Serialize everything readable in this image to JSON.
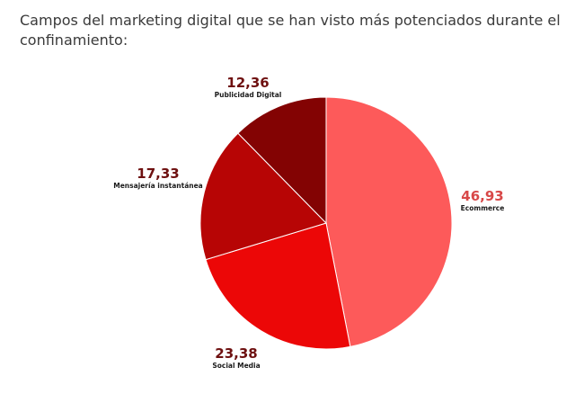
{
  "chart_data": {
    "type": "pie",
    "title": "Campos del marketing digital que se han visto más potenciados durante el confinamiento:",
    "slices": [
      {
        "label": "Ecommerce",
        "value": 46.93,
        "display": "46,93",
        "color": "#fd5a5a",
        "value_color": "#d84848"
      },
      {
        "label": "Social Media",
        "value": 23.38,
        "display": "23,38",
        "color": "#ec0707",
        "value_color": "#6e1010"
      },
      {
        "label": "Mensajería instantánea",
        "value": 17.33,
        "display": "17,33",
        "color": "#b70505",
        "value_color": "#6e1010"
      },
      {
        "label": "Publicidad Digital",
        "value": 12.36,
        "display": "12,36",
        "color": "#830303",
        "value_color": "#6e1010"
      }
    ],
    "start_angle": "12 o'clock",
    "direction": "clockwise",
    "legend": "none",
    "value_labels": "outside slices"
  }
}
